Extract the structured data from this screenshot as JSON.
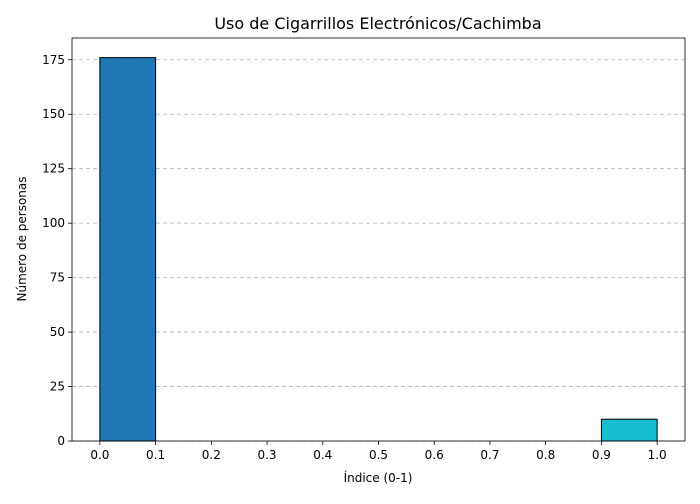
{
  "chart_data": {
    "type": "bar",
    "title": "Uso de Cigarrillos Electrónicos/Cachimba",
    "xlabel": "Índice (0-1)",
    "ylabel": "Número de personas",
    "xlim": [
      -0.05,
      1.05
    ],
    "ylim": [
      0,
      185
    ],
    "x_ticks": [
      "0.0",
      "0.1",
      "0.2",
      "0.3",
      "0.4",
      "0.5",
      "0.6",
      "0.7",
      "0.8",
      "0.9",
      "1.0"
    ],
    "y_ticks": [
      "0",
      "25",
      "50",
      "75",
      "100",
      "125",
      "150",
      "175"
    ],
    "grid": "y-dashed",
    "bins": [
      {
        "x0": 0.0,
        "x1": 0.1,
        "value": 176,
        "color": "#1f77b4"
      },
      {
        "x0": 0.1,
        "x1": 0.2,
        "value": 0,
        "color": "#1f77b4"
      },
      {
        "x0": 0.2,
        "x1": 0.3,
        "value": 0,
        "color": "#1f77b4"
      },
      {
        "x0": 0.3,
        "x1": 0.4,
        "value": 0,
        "color": "#1f77b4"
      },
      {
        "x0": 0.4,
        "x1": 0.5,
        "value": 0,
        "color": "#1f77b4"
      },
      {
        "x0": 0.5,
        "x1": 0.6,
        "value": 0,
        "color": "#1f77b4"
      },
      {
        "x0": 0.6,
        "x1": 0.7,
        "value": 0,
        "color": "#1f77b4"
      },
      {
        "x0": 0.7,
        "x1": 0.8,
        "value": 0,
        "color": "#1f77b4"
      },
      {
        "x0": 0.8,
        "x1": 0.9,
        "value": 0,
        "color": "#1f77b4"
      },
      {
        "x0": 0.9,
        "x1": 1.0,
        "value": 10,
        "color": "#17becf"
      }
    ]
  }
}
